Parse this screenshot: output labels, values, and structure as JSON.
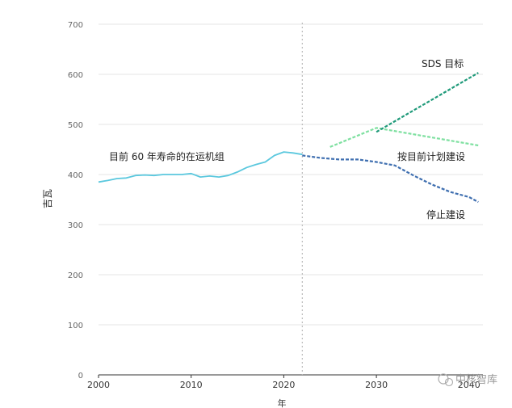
{
  "chart_data": {
    "type": "line",
    "title": "",
    "xlabel": "年",
    "ylabel": "吉瓦",
    "xlim": [
      2000,
      2041
    ],
    "ylim": [
      0,
      700
    ],
    "xticks": [
      2000,
      2010,
      2020,
      2030,
      2040
    ],
    "yticks": [
      0,
      100,
      200,
      300,
      400,
      500,
      600,
      700
    ],
    "grid": true,
    "reference_line_x": 2022,
    "series": [
      {
        "name": "目前 60 年寿命的在运机组",
        "color": "#5bc8de",
        "style": "solid",
        "x": [
          2000,
          2001,
          2002,
          2003,
          2004,
          2005,
          2006,
          2007,
          2008,
          2009,
          2010,
          2011,
          2012,
          2013,
          2014,
          2015,
          2016,
          2017,
          2018,
          2019,
          2020,
          2021,
          2022
        ],
        "y": [
          385,
          388,
          392,
          393,
          398,
          399,
          398,
          400,
          400,
          400,
          402,
          395,
          397,
          395,
          398,
          405,
          414,
          420,
          425,
          438,
          445,
          443,
          440
        ]
      },
      {
        "name": "停止建设",
        "color": "#3f6fb0",
        "style": "dashed",
        "x": [
          2022,
          2024,
          2026,
          2028,
          2030,
          2032,
          2034,
          2036,
          2038,
          2040,
          2041
        ],
        "y": [
          438,
          433,
          430,
          430,
          425,
          418,
          398,
          380,
          365,
          355,
          345
        ]
      },
      {
        "name": "按目前计划建设",
        "color": "#7ee0a0",
        "style": "dashed",
        "x": [
          2025,
          2030,
          2041
        ],
        "y": [
          455,
          493,
          458
        ]
      },
      {
        "name": "SDS 目标",
        "color": "#1f9a7a",
        "style": "dashed",
        "x": [
          2030,
          2041
        ],
        "y": [
          485,
          603
        ]
      }
    ],
    "annotations": [
      {
        "text": "SDS 目标",
        "series": "SDS 目标"
      },
      {
        "text": "按目前计划建设",
        "series": "按目前计划建设"
      },
      {
        "text": "停止建设",
        "series": "停止建设"
      },
      {
        "text": "目前 60 年寿命的在运机组",
        "series": "目前 60 年寿命的在运机组"
      }
    ]
  },
  "watermark": "中核智库"
}
